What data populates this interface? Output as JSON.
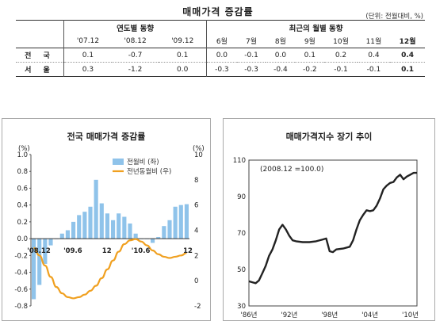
{
  "page": {
    "title": "매매가격 증감률",
    "unit": "(단위: 전월대비, %)"
  },
  "table": {
    "group_yearly": "연도별 동향",
    "group_monthly": "최근의 월별 동향",
    "yearly_cols": [
      "'07.12",
      "'08.12",
      "'09.12"
    ],
    "monthly_cols": [
      "6월",
      "7월",
      "8월",
      "9월",
      "10월",
      "11월",
      "12월"
    ],
    "rows": [
      {
        "label": "전 국",
        "yearly": [
          "0.1",
          "-0.7",
          "0.1"
        ],
        "monthly": [
          "0.0",
          "-0.1",
          "0.0",
          "0.1",
          "0.2",
          "0.4",
          "0.4"
        ]
      },
      {
        "label": "서 울",
        "yearly": [
          "0.3",
          "-1.2",
          "0.0"
        ],
        "monthly": [
          "-0.3",
          "-0.3",
          "-0.4",
          "-0.2",
          "-0.1",
          "-0.1",
          "0.1"
        ]
      }
    ]
  },
  "left_chart": {
    "title": "전국 매매가격 증감률",
    "y_left_unit": "(%)",
    "y_right_unit": "(%)",
    "legend_bar": "전월비 (좌)",
    "legend_line": "전년동월비 (우)",
    "bar_color": "#8fc3ea",
    "line_color": "#f0a020"
  },
  "right_chart": {
    "title": "매매가격지수 장기 추이",
    "annotation": "(2008.12 =100.0)",
    "line_color": "#222222"
  },
  "chart_data": [
    {
      "type": "bar",
      "title": "전국 매매가격 증감률",
      "xlabel": "",
      "ylabel": "(%)",
      "ylim": [
        -0.8,
        1.0
      ],
      "y_ticks": [
        "1.0",
        "0.8",
        "0.6",
        "0.4",
        "0.2",
        "0.0",
        "-0.2",
        "-0.4",
        "-0.6",
        "-0.8"
      ],
      "y2lim": [
        -2,
        10
      ],
      "y2_ticks": [
        "10",
        "8",
        "6",
        "4",
        "2",
        "0",
        "-2"
      ],
      "x_tick_labels": [
        "'08.12",
        "'09.6",
        "12",
        "'10.6",
        "12"
      ],
      "legend": "top-right",
      "series": [
        {
          "name": "전월비 (좌)",
          "axis": "left",
          "values": [
            -0.72,
            -0.55,
            -0.3,
            -0.08,
            0.0,
            0.06,
            0.1,
            0.2,
            0.28,
            0.32,
            0.38,
            0.7,
            0.42,
            0.3,
            0.22,
            0.3,
            0.26,
            0.18,
            0.06,
            0.0,
            0.0,
            -0.05,
            0.02,
            0.15,
            0.22,
            0.38,
            0.4,
            0.41
          ]
        },
        {
          "name": "전년동월비 (우)",
          "axis": "right",
          "values": [
            2.6,
            2.0,
            1.2,
            0.3,
            -0.5,
            -1.0,
            -1.3,
            -1.4,
            -1.3,
            -1.1,
            -0.8,
            -0.4,
            0.2,
            0.9,
            1.6,
            2.3,
            2.9,
            3.2,
            3.3,
            3.1,
            2.8,
            2.4,
            2.1,
            1.9,
            1.8,
            1.9,
            2.0,
            2.2
          ]
        }
      ]
    },
    {
      "type": "line",
      "title": "매매가격지수 장기 추이",
      "annotation": "(2008.12 =100.0)",
      "ylim": [
        30,
        110
      ],
      "y_ticks": [
        "110",
        "90",
        "70",
        "50",
        "30"
      ],
      "x_tick_labels": [
        "'86년",
        "'92년",
        "'98년",
        "'04년",
        "'10년"
      ],
      "xlim": [
        1986,
        2011
      ],
      "series": [
        {
          "name": "",
          "x": [
            1986,
            1986.5,
            1987,
            1987.5,
            1988,
            1988.5,
            1989,
            1989.5,
            1990,
            1990.5,
            1991,
            1991.5,
            1992,
            1992.5,
            1993,
            1994,
            1995,
            1996,
            1997,
            1997.5,
            1998,
            1998.5,
            1999,
            2000,
            2001,
            2001.5,
            2002,
            2002.5,
            2003,
            2003.5,
            2004,
            2004.5,
            2005,
            2005.5,
            2006,
            2006.5,
            2007,
            2007.5,
            2008,
            2008.5,
            2009,
            2009.5,
            2010,
            2010.5,
            2011
          ],
          "values": [
            43.5,
            43.0,
            42.5,
            44.0,
            48.0,
            52.0,
            57.5,
            61.0,
            66.0,
            72.0,
            74.5,
            72.0,
            68.5,
            66.0,
            65.5,
            65.0,
            65.0,
            65.5,
            66.5,
            67.0,
            60.0,
            59.5,
            61.0,
            61.5,
            62.5,
            66.0,
            72.0,
            77.0,
            80.0,
            82.5,
            82.0,
            82.5,
            85.0,
            89.0,
            94.0,
            96.0,
            97.5,
            98.0,
            100.5,
            102.0,
            99.5,
            101.0,
            102.0,
            103.0,
            103.0
          ]
        }
      ]
    }
  ]
}
